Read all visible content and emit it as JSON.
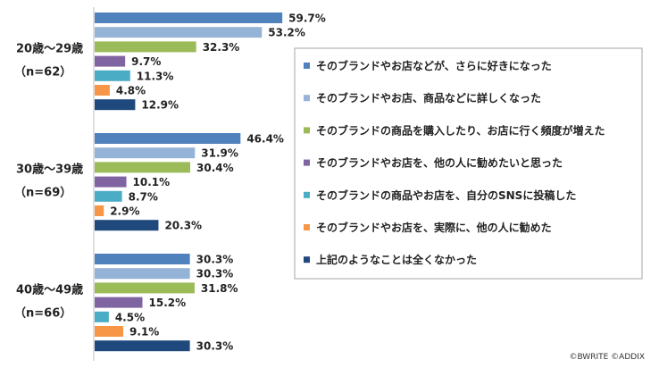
{
  "chart_data": {
    "type": "bar",
    "orientation": "horizontal",
    "unit": "%",
    "xlim": [
      0,
      60
    ],
    "grid": false,
    "legend_position": "right",
    "groups": [
      {
        "label": "20歳～29歳",
        "n": "（n=62）"
      },
      {
        "label": "30歳～39歳",
        "n": "（n=69）"
      },
      {
        "label": "40歳～49歳",
        "n": "（n=66）"
      }
    ],
    "series": [
      {
        "name": "そのブランドやお店などが、さらに好きになった",
        "color": "#4f81bd",
        "values": [
          59.7,
          46.4,
          30.3
        ]
      },
      {
        "name": "そのブランドやお店、商品などに詳しくなった",
        "color": "#95b3d7",
        "values": [
          53.2,
          31.9,
          30.3
        ]
      },
      {
        "name": "そのブランドの商品を購入したり、お店に行く頻度が増えた",
        "color": "#9bbb59",
        "values": [
          32.3,
          30.4,
          31.8
        ]
      },
      {
        "name": "そのブランドやお店を、他の人に勧めたいと思った",
        "color": "#8064a2",
        "values": [
          9.7,
          10.1,
          15.2
        ]
      },
      {
        "name": "そのブランドの商品やお店を、自分のSNSに投稿した",
        "color": "#4bacc6",
        "values": [
          11.3,
          8.7,
          4.5
        ]
      },
      {
        "name": "そのブランドやお店を、実際に、他の人に勧めた",
        "color": "#f79646",
        "values": [
          4.8,
          2.9,
          9.1
        ]
      },
      {
        "name": "上記のようなことは全くなかった",
        "color": "#1f497d",
        "values": [
          12.9,
          20.3,
          30.3
        ]
      }
    ]
  },
  "credit": "©BWRITE ©ADDIX"
}
